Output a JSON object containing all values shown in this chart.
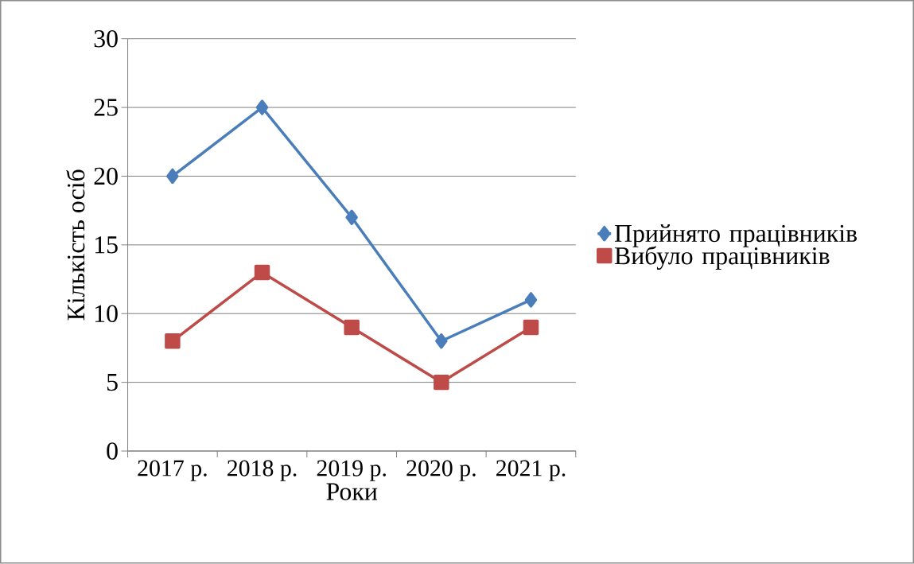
{
  "chart_data": {
    "type": "line",
    "xlabel": "Роки",
    "ylabel": "Кількість осіб",
    "categories": [
      "2017 р.",
      "2018 р.",
      "2019 р.",
      "2020 р.",
      "2021 р."
    ],
    "series": [
      {
        "name": "Прийнято працівників",
        "color": "#4a7ebb",
        "marker": "diamond",
        "values": [
          20,
          25,
          17,
          8,
          11
        ]
      },
      {
        "name": "Вибуло працівників",
        "color": "#be4b48",
        "marker": "square",
        "values": [
          8,
          13,
          9,
          5,
          9
        ]
      }
    ],
    "ylim": [
      0,
      30
    ],
    "yticks": [
      0,
      5,
      10,
      15,
      20,
      25,
      30
    ],
    "grid": "y",
    "legend": "right",
    "line_style": "solid"
  }
}
